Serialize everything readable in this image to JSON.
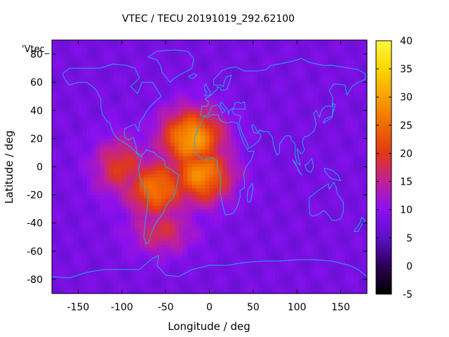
{
  "chart_data": {
    "type": "heatmap",
    "title": "VTEC / TECU 20191019_292.62100",
    "xlabel": "Longitude / deg",
    "ylabel": "Latitude / deg",
    "key_label": "'Vtec_",
    "xlim": [
      -180,
      180
    ],
    "ylim": [
      -90,
      90
    ],
    "x_ticks": [
      -150,
      -100,
      -50,
      0,
      50,
      100,
      150
    ],
    "y_ticks": [
      -80,
      -60,
      -40,
      -20,
      0,
      20,
      40,
      60,
      80
    ],
    "colorbar": {
      "range": [
        -5,
        40
      ],
      "ticks": [
        -5,
        0,
        5,
        10,
        15,
        20,
        25,
        30,
        35,
        40
      ],
      "palette": [
        "#000000",
        "#2a0055",
        "#5d10c8",
        "#8a10f0",
        "#c0209a",
        "#e03818",
        "#f06a00",
        "#f8a000",
        "#fcd600",
        "#fff740"
      ]
    },
    "field": {
      "background": 8,
      "north_pole_min": 3,
      "peaks": [
        {
          "lon": -20,
          "lat": 20,
          "value": 30
        },
        {
          "lon": -60,
          "lat": -15,
          "value": 26
        },
        {
          "lon": -10,
          "lat": -5,
          "value": 28
        },
        {
          "lon": -100,
          "lat": 0,
          "value": 20
        },
        {
          "lon": -55,
          "lat": -45,
          "value": 18
        }
      ]
    },
    "coastline_color": "#22a8f0"
  }
}
